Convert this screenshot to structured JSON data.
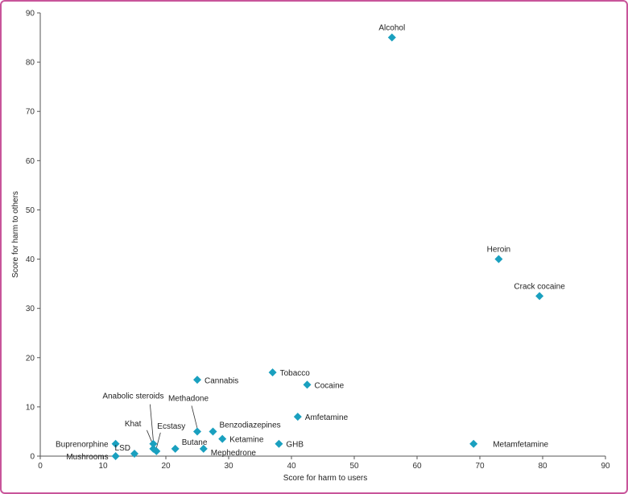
{
  "chart_data": {
    "type": "scatter",
    "title": "",
    "xlabel": "Score for harm to users",
    "ylabel": "Score for harm to others",
    "xlim": [
      0,
      90
    ],
    "ylim": [
      0,
      90
    ],
    "xticks": [
      0,
      10,
      20,
      30,
      40,
      50,
      60,
      70,
      80,
      90
    ],
    "yticks": [
      0,
      10,
      20,
      30,
      40,
      50,
      60,
      70,
      80,
      90
    ],
    "grid": false,
    "marker_color": "#1aa0bf",
    "points": [
      {
        "name": "Alcohol",
        "x": 56,
        "y": 85,
        "label_pos": "above"
      },
      {
        "name": "Heroin",
        "x": 73,
        "y": 40,
        "label_pos": "above"
      },
      {
        "name": "Crack cocaine",
        "x": 79.5,
        "y": 32.5,
        "label_pos": "above"
      },
      {
        "name": "Metamfetamine",
        "x": 69,
        "y": 2.5,
        "label_pos": "right-far"
      },
      {
        "name": "Tobacco",
        "x": 37,
        "y": 17,
        "label_pos": "right"
      },
      {
        "name": "Cocaine",
        "x": 42.5,
        "y": 14.5,
        "label_pos": "right"
      },
      {
        "name": "Amfetamine",
        "x": 41,
        "y": 8,
        "label_pos": "right"
      },
      {
        "name": "GHB",
        "x": 38,
        "y": 2.5,
        "label_pos": "right"
      },
      {
        "name": "Cannabis",
        "x": 25,
        "y": 15.5,
        "label_pos": "right"
      },
      {
        "name": "Benzodiazepines",
        "x": 27.5,
        "y": 5,
        "label_pos": "right-up"
      },
      {
        "name": "Ketamine",
        "x": 29,
        "y": 3.5,
        "label_pos": "right"
      },
      {
        "name": "Methadone",
        "x": 25,
        "y": 5,
        "label_pos": "leader-up"
      },
      {
        "name": "Mephedrone",
        "x": 26,
        "y": 1.5,
        "label_pos": "right-down"
      },
      {
        "name": "Butane",
        "x": 21.5,
        "y": 1.5,
        "label_pos": "right-up"
      },
      {
        "name": "Ecstasy",
        "x": 18.5,
        "y": 1,
        "label_pos": "leader-up-right"
      },
      {
        "name": "Khat",
        "x": 18,
        "y": 1.5,
        "label_pos": "leader-up-left"
      },
      {
        "name": "Anabolic steroids",
        "x": 18,
        "y": 2.5,
        "label_pos": "leader-up-far"
      },
      {
        "name": "LSD",
        "x": 15,
        "y": 0.5,
        "label_pos": "left-up"
      },
      {
        "name": "Buprenorphine",
        "x": 12,
        "y": 2.5,
        "label_pos": "left"
      },
      {
        "name": "Mushrooms",
        "x": 12,
        "y": 0,
        "label_pos": "left"
      }
    ]
  }
}
